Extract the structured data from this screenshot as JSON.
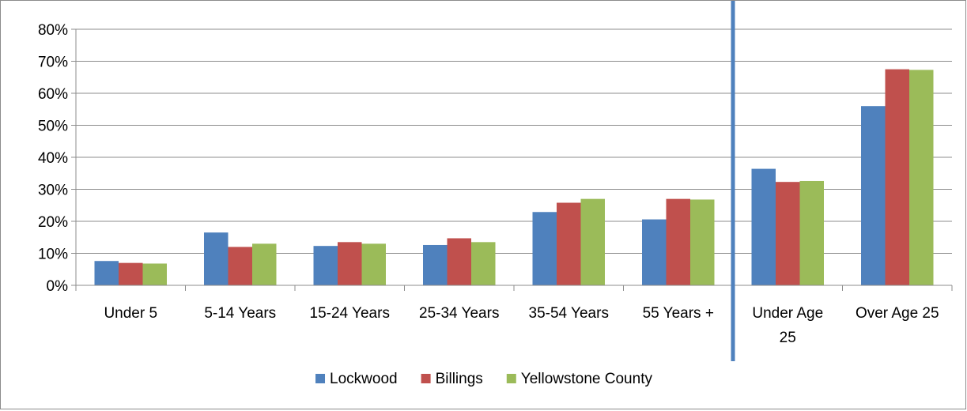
{
  "chart_data": {
    "type": "bar",
    "title": "",
    "xlabel": "",
    "ylabel": "",
    "ylim": [
      0,
      80
    ],
    "y_unit": "%",
    "y_ticks": [
      "0%",
      "10%",
      "20%",
      "30%",
      "40%",
      "50%",
      "60%",
      "70%",
      "80%"
    ],
    "grid": true,
    "legend_position": "bottom",
    "categories": [
      "Under 5",
      "5-14 Years",
      "15-24 Years",
      "25-34 Years",
      "35-54 Years",
      "55 Years +",
      "Under Age 25",
      "Over Age 25"
    ],
    "category_lines": [
      [
        "Under 5"
      ],
      [
        "5-14 Years"
      ],
      [
        "15-24 Years"
      ],
      [
        "25-34 Years"
      ],
      [
        "35-54 Years"
      ],
      [
        "55 Years +"
      ],
      [
        "Under Age",
        "25"
      ],
      [
        "Over Age 25"
      ]
    ],
    "divider_after_category": "55 Years +",
    "series": [
      {
        "name": "Lockwood",
        "color": "#4f81bd",
        "values": [
          7.6,
          16.5,
          12.3,
          12.6,
          22.9,
          20.6,
          36.4,
          56.0
        ]
      },
      {
        "name": "Billings",
        "color": "#c0504d",
        "values": [
          7.0,
          12.0,
          13.5,
          14.7,
          25.8,
          27.0,
          32.3,
          67.5
        ]
      },
      {
        "name": "Yellowstone County",
        "color": "#9bbb59",
        "values": [
          6.8,
          13.0,
          13.0,
          13.5,
          27.0,
          26.8,
          32.6,
          67.3
        ]
      }
    ],
    "divider_color": "#4f81bd",
    "grid_color": "#8c8c8c"
  }
}
